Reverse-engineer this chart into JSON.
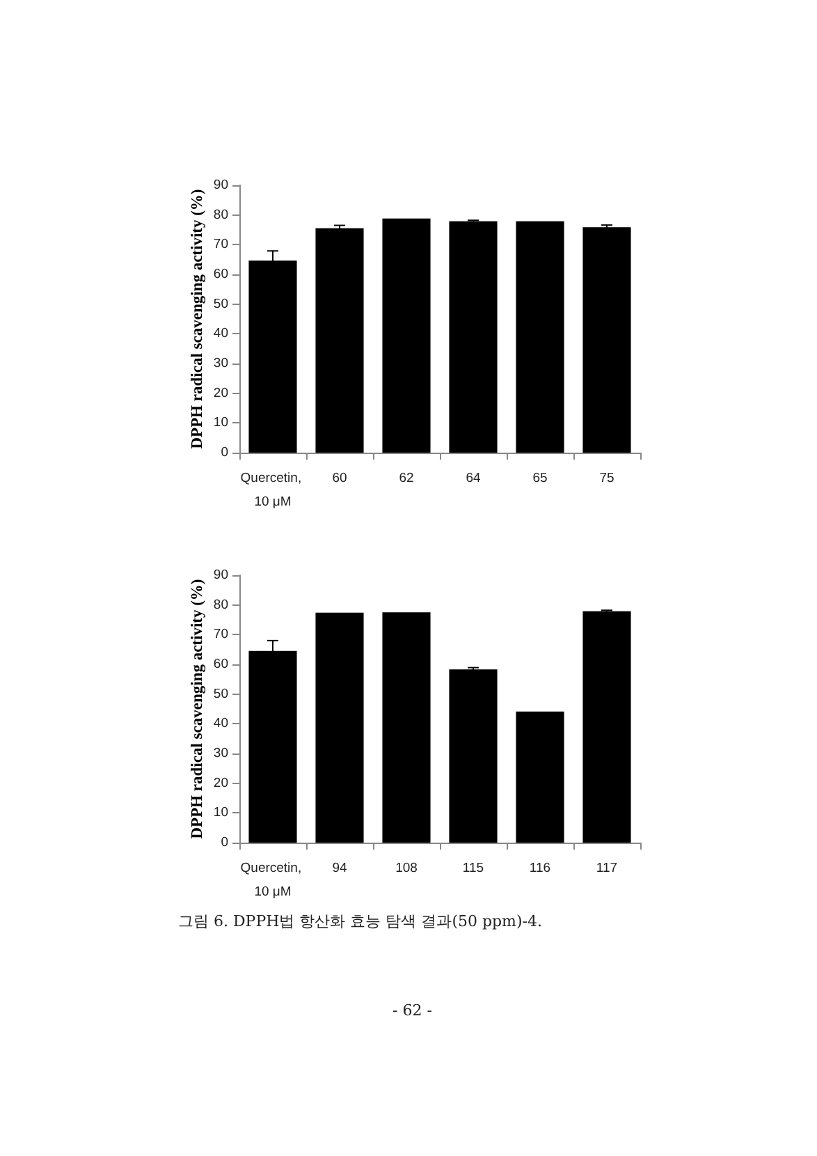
{
  "chart_data": [
    {
      "type": "bar",
      "ylabel": "DPPH radical scavenging activity (%)",
      "categories": [
        "Quercetin, 10 μM",
        "60",
        "62",
        "64",
        "65",
        "75"
      ],
      "values": [
        64.6,
        75.5,
        78.8,
        77.9,
        77.9,
        75.9
      ],
      "errors": [
        3.3,
        1,
        null,
        0.3,
        null,
        0.7
      ],
      "color": "#000000",
      "ylim": [
        0,
        90
      ],
      "yticks": [
        0,
        10,
        20,
        30,
        40,
        50,
        60,
        70,
        80,
        90
      ],
      "grid": false
    },
    {
      "type": "bar",
      "ylabel": "DPPH radical scavenging activity (%)",
      "categories": [
        "Quercetin, 10 μM",
        "94",
        "108",
        "115",
        "116",
        "117"
      ],
      "values": [
        64.5,
        77.4,
        77.5,
        58.3,
        44.1,
        77.9
      ],
      "errors": [
        3.5,
        null,
        null,
        0.6,
        null,
        0.3
      ],
      "color": "#000000",
      "ylim": [
        0,
        90
      ],
      "yticks": [
        0,
        10,
        20,
        30,
        40,
        50,
        60,
        70,
        80,
        90
      ],
      "grid": false,
      "annotations": [
        "그림 6. DPPH법 항산화 효능 탐색 결과(50 ppm)-4.",
        "- 62 -"
      ]
    }
  ]
}
